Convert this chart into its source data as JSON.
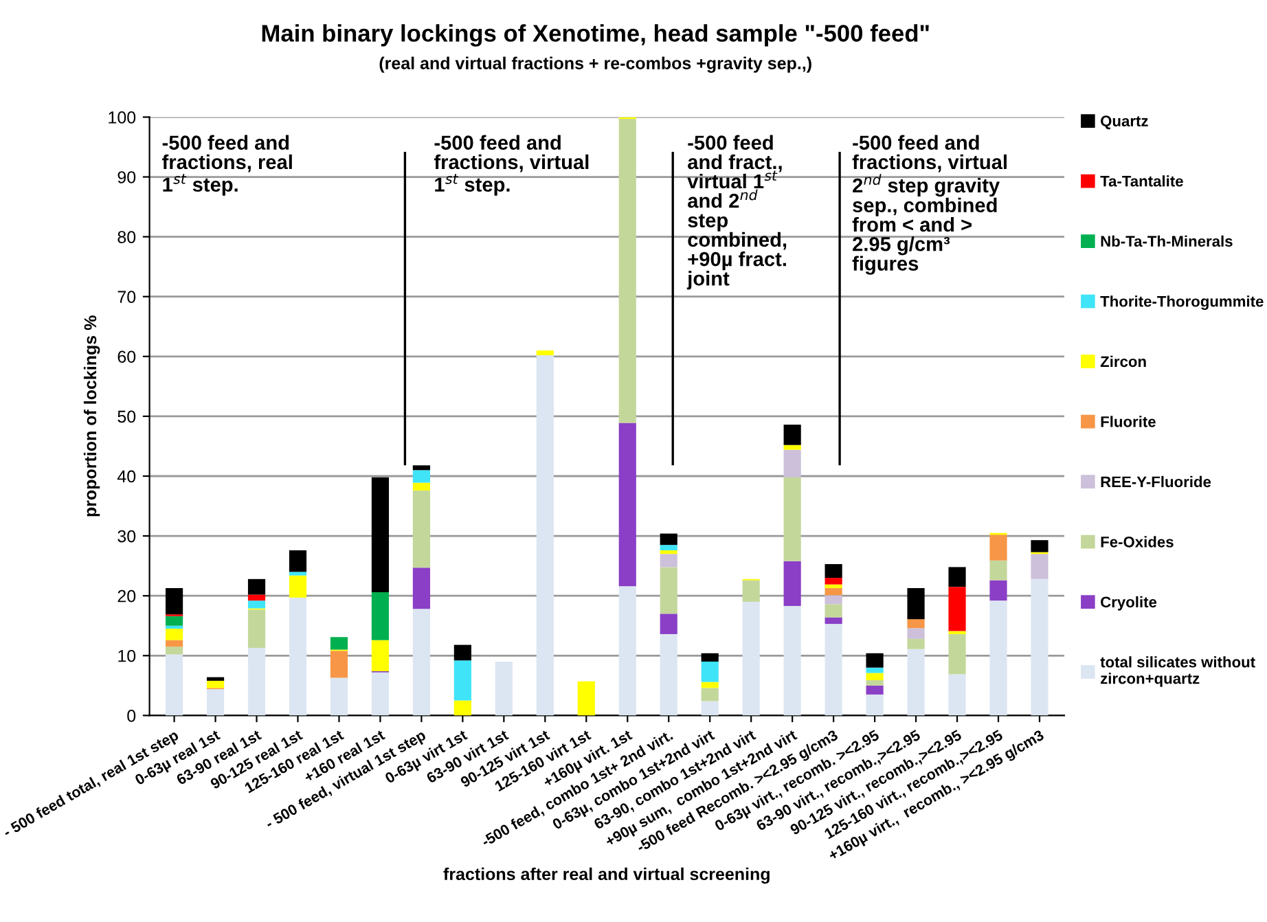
{
  "chart_data": {
    "type": "bar",
    "stacked": true,
    "title": "Main binary lockings of Xenotime, head sample \"-500 feed\"",
    "subtitle": "(real and virtual fractions + re-combos +gravity sep.,)",
    "xlabel": "fractions after real and virtual screening",
    "ylabel": "proportion of lockings %",
    "categories": [
      "- 500 feed total, real 1st step",
      "0-63µ real 1st",
      "63-90 real 1st",
      "90-125 real 1st",
      "125-160 real 1st",
      "+160 real 1st",
      "- 500 feed, virtual 1st step",
      "0-63µ virt 1st",
      "63-90 virt 1st",
      "90-125 virt 1st",
      "125-160 virt 1st",
      "+160µ virt. 1st",
      "-500 feed, combo 1st+ 2nd virt.",
      "0-63µ, combo 1st+2nd virt",
      "63-90, combo 1st+2nd virt",
      "+90µ sum,  combo 1st+2nd virt",
      "-500 feed Recomb. ><2.95 g/cm3",
      "0-63µ virt., recomb. ><2.95",
      "63-90 virt., recomb.,><2.95",
      "90-125 virt., recomb.,><2.95",
      "125-160 virt., recomb.,><2.95",
      "+160µ virt.,  recomb., ><2.95 g/cm3"
    ],
    "series": [
      {
        "name": "total silicates without\nzircon+quartz",
        "color": "#dce6f2",
        "values": [
          10.2,
          4.4,
          11.3,
          19.7,
          6.3,
          7.2,
          17.8,
          0,
          9.0,
          60.2,
          0,
          21.6,
          13.6,
          2.4,
          19.0,
          18.3,
          15.3,
          3.5,
          11.1,
          6.9,
          19.2,
          22.8
        ]
      },
      {
        "name": "Cryolite",
        "color": "#8a3fc6",
        "values": [
          0,
          0,
          0,
          0,
          0,
          0.2,
          6.9,
          0,
          0,
          0,
          0,
          27.3,
          3.4,
          0,
          0,
          7.5,
          1.1,
          1.5,
          0,
          0,
          3.4,
          0
        ]
      },
      {
        "name": "Fe-Oxides",
        "color": "#c4d79b",
        "values": [
          1.3,
          0,
          6.4,
          0,
          0,
          0,
          12.9,
          0,
          0,
          0,
          0,
          50.8,
          7.8,
          2.2,
          3.6,
          14.0,
          2.2,
          0.9,
          1.7,
          6.7,
          3.3,
          0
        ]
      },
      {
        "name": "REE-Y-Fluoride",
        "color": "#ccc0da",
        "values": [
          0,
          0,
          0,
          0,
          0,
          0,
          0,
          0,
          0,
          0,
          0,
          0,
          2.2,
          0,
          0,
          4.6,
          1.5,
          0,
          1.8,
          0,
          0,
          4.2
        ]
      },
      {
        "name": "Fluorite",
        "color": "#f79646",
        "values": [
          1.1,
          0.2,
          0,
          0,
          4.5,
          0,
          0,
          0,
          0,
          0,
          0,
          0,
          0,
          0,
          0,
          0,
          1.2,
          0,
          1.5,
          0,
          4.3,
          0
        ]
      },
      {
        "name": "Zircon",
        "color": "#ffff00",
        "values": [
          1.9,
          1.2,
          0.2,
          3.7,
          0.2,
          5.2,
          1.3,
          2.5,
          0,
          0.8,
          5.7,
          0.3,
          0.6,
          1.0,
          0.2,
          0.8,
          0.6,
          1.2,
          0,
          0.5,
          0.3,
          0.3
        ]
      },
      {
        "name": "Thorite-Thorogummite",
        "color": "#40e4f8",
        "values": [
          0.5,
          0,
          1.3,
          0.6,
          0,
          0,
          2.1,
          6.7,
          0,
          0,
          0,
          0,
          0.9,
          3.4,
          0,
          0,
          0,
          0.9,
          0,
          0,
          0,
          0
        ]
      },
      {
        "name": "Nb-Ta-Th-Minerals",
        "color": "#00b050",
        "values": [
          1.6,
          0,
          0,
          0,
          2.1,
          8.0,
          0,
          0,
          0,
          0,
          0,
          0,
          0,
          0,
          0,
          0,
          0,
          0,
          0,
          0,
          0,
          0
        ]
      },
      {
        "name": "Ta-Tantalite",
        "color": "#ff0000",
        "values": [
          0.3,
          0,
          1.0,
          0,
          0,
          0,
          0,
          0,
          0,
          0,
          0,
          0,
          0,
          0,
          0,
          0,
          1.1,
          0,
          0,
          7.4,
          0,
          0
        ]
      },
      {
        "name": "Quartz",
        "color": "#000000",
        "values": [
          4.4,
          0.6,
          2.6,
          3.6,
          0,
          19.2,
          0.8,
          2.6,
          0,
          0,
          0,
          0,
          1.9,
          1.4,
          0,
          3.4,
          2.3,
          2.4,
          5.2,
          3.3,
          0,
          2.0
        ]
      }
    ],
    "ylim": [
      0,
      100
    ],
    "yticks": [
      0,
      10,
      20,
      30,
      40,
      50,
      60,
      70,
      80,
      90,
      100
    ],
    "grid": "y",
    "legend": "right",
    "annotations": [
      "-500 feed and\nfractions, real\n1$^{st}$ step.",
      "-500 feed and\nfractions, virtual\n1$^{st}$ step.",
      "-500 feed\nand fract.,\nvirtual 1$^{st}$\nand 2$^{nd}$\nstep\ncombined,\n+90µ fract.\njoint",
      "-500 feed and\nfractions, virtual\n2$^{nd}$ step gravity\nsep., combined\nfrom < and >\n2.95 g/cm³\nfigures"
    ]
  }
}
